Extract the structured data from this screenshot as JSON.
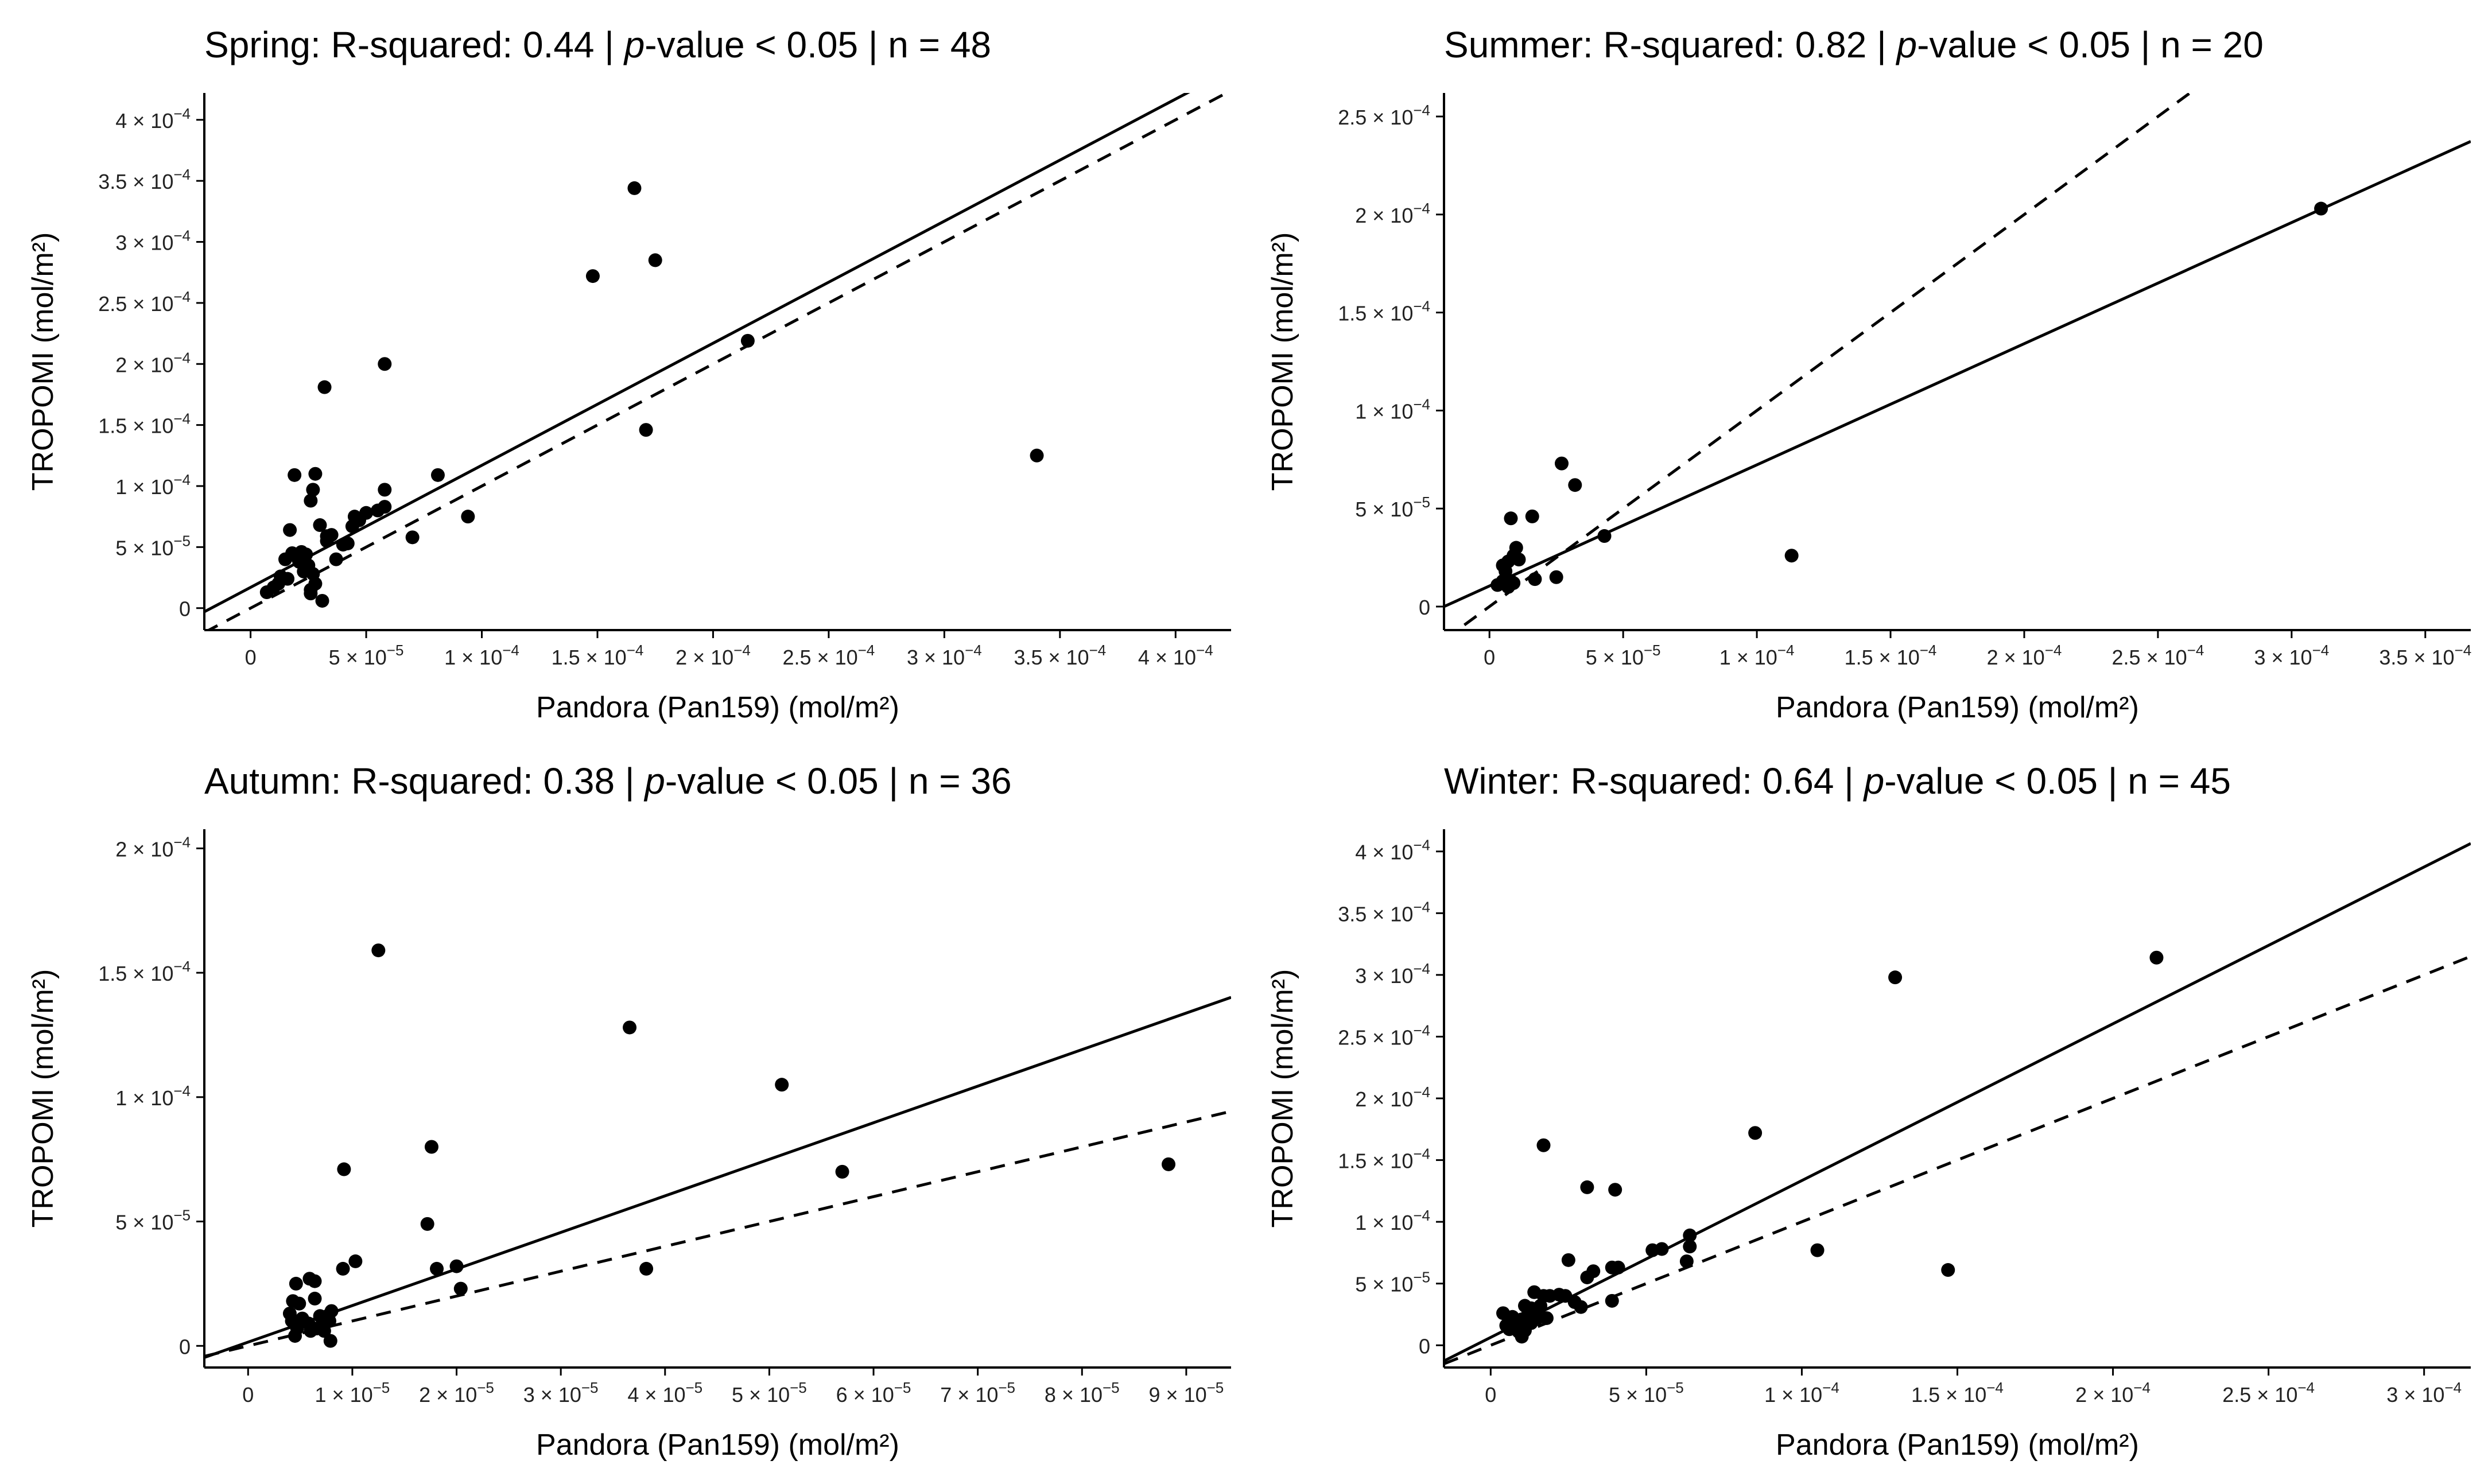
{
  "figure_axes": {
    "xlabel": "Pandora (Pan159) (mol/m²)",
    "ylabel": "TROPOMI (mol/m²)"
  },
  "chart_data": [
    {
      "type": "scatter",
      "panel": "spring",
      "season": "Spring",
      "title": "Spring: R-squared: 0.44 | p-value < 0.05 | n = 48",
      "title_parts": {
        "prefix": "Spring: R-squared: 0.44 | ",
        "italic": "p",
        "suffix": "-value < 0.05 | n = 48"
      },
      "r_squared": 0.44,
      "p_value": "< 0.05",
      "n": 48,
      "xlabel": "Pandora (Pan159) (mol/m²)",
      "ylabel": "TROPOMI (mol/m²)",
      "xlim": [
        -2e-05,
        0.000424
      ],
      "ylim": [
        -1.8e-05,
        0.000422
      ],
      "xticks": [
        {
          "value": 0,
          "mantissa": "0",
          "exp": ""
        },
        {
          "value": 5e-05,
          "mantissa": "5 × 10",
          "exp": "−5"
        },
        {
          "value": 0.0001,
          "mantissa": "1 × 10",
          "exp": "−4"
        },
        {
          "value": 0.00015,
          "mantissa": "1.5 × 10",
          "exp": "−4"
        },
        {
          "value": 0.0002,
          "mantissa": "2 × 10",
          "exp": "−4"
        },
        {
          "value": 0.00025,
          "mantissa": "2.5 × 10",
          "exp": "−4"
        },
        {
          "value": 0.0003,
          "mantissa": "3 × 10",
          "exp": "−4"
        },
        {
          "value": 0.00035,
          "mantissa": "3.5 × 10",
          "exp": "−4"
        },
        {
          "value": 0.0004,
          "mantissa": "4 × 10",
          "exp": "−4"
        }
      ],
      "yticks": [
        {
          "value": 0,
          "mantissa": "0",
          "exp": ""
        },
        {
          "value": 5e-05,
          "mantissa": "5 × 10",
          "exp": "−5"
        },
        {
          "value": 0.0001,
          "mantissa": "1 × 10",
          "exp": "−4"
        },
        {
          "value": 0.00015,
          "mantissa": "1.5 × 10",
          "exp": "−4"
        },
        {
          "value": 0.0002,
          "mantissa": "2 × 10",
          "exp": "−4"
        },
        {
          "value": 0.00025,
          "mantissa": "2.5 × 10",
          "exp": "−4"
        },
        {
          "value": 0.0003,
          "mantissa": "3 × 10",
          "exp": "−4"
        },
        {
          "value": 0.00035,
          "mantissa": "3.5 × 10",
          "exp": "−4"
        },
        {
          "value": 0.0004,
          "mantissa": "4 × 10",
          "exp": "−4"
        }
      ],
      "fit_line": {
        "slope": 1.0,
        "intercept": 1.7e-05
      },
      "one_to_one": {
        "slope": 1,
        "intercept": 0
      },
      "points": [
        [
          0.000166,
          0.000344
        ],
        [
          0.000175,
          0.000285
        ],
        [
          0.000148,
          0.000272
        ],
        [
          0.000215,
          0.000219
        ],
        [
          0.00034,
          0.000125
        ],
        [
          0.000171,
          0.000146
        ],
        [
          5.8e-05,
          0.0002
        ],
        [
          3.2e-05,
          0.000181
        ],
        [
          8.1e-05,
          0.000109
        ],
        [
          9.4e-05,
          7.5e-05
        ],
        [
          7e-05,
          5.8e-05
        ],
        [
          5.8e-05,
          9.7e-05
        ],
        [
          5.5e-05,
          8e-05
        ],
        [
          5.8e-05,
          8.3e-05
        ],
        [
          5e-05,
          7.8e-05
        ],
        [
          4.7e-05,
          7.2e-05
        ],
        [
          4.5e-05,
          7.5e-05
        ],
        [
          4.4e-05,
          6.7e-05
        ],
        [
          4.2e-05,
          5.3e-05
        ],
        [
          4e-05,
          5.2e-05
        ],
        [
          3.7e-05,
          4e-05
        ],
        [
          3.5e-05,
          6e-05
        ],
        [
          3.3e-05,
          5.5e-05
        ],
        [
          3e-05,
          6.8e-05
        ],
        [
          2.8e-05,
          0.00011
        ],
        [
          2.7e-05,
          9.7e-05
        ],
        [
          2.6e-05,
          8.8e-05
        ],
        [
          1.9e-05,
          0.000109
        ],
        [
          1.7e-05,
          6.4e-05
        ],
        [
          1.5e-05,
          4e-05
        ],
        [
          2e-05,
          4.2e-05
        ],
        [
          2.2e-05,
          4.6e-05
        ],
        [
          2.4e-05,
          4.4e-05
        ],
        [
          2.5e-05,
          3.5e-05
        ],
        [
          2.3e-05,
          3e-05
        ],
        [
          2.1e-05,
          3.8e-05
        ],
        [
          2.7e-05,
          2.8e-05
        ],
        [
          2.8e-05,
          2e-05
        ],
        [
          2.6e-05,
          1.5e-05
        ],
        [
          2.6e-05,
          1.2e-05
        ],
        [
          3.1e-05,
          6e-06
        ],
        [
          1.6e-05,
          2.4e-05
        ],
        [
          1.2e-05,
          2e-05
        ],
        [
          1e-05,
          1.7e-05
        ],
        [
          7e-06,
          1.3e-05
        ],
        [
          1.3e-05,
          2.6e-05
        ],
        [
          1.8e-05,
          4.5e-05
        ],
        [
          3.3e-05,
          5.9e-05
        ]
      ]
    },
    {
      "type": "scatter",
      "panel": "summer",
      "season": "Summer",
      "title": "Summer: R-squared: 0.82 | p-value < 0.05 | n = 20",
      "title_parts": {
        "prefix": "Summer: R-squared: 0.82 | ",
        "italic": "p",
        "suffix": "-value < 0.05 | n = 20"
      },
      "r_squared": 0.82,
      "p_value": "< 0.05",
      "n": 20,
      "xlabel": "Pandora (Pan159) (mol/m²)",
      "ylabel": "TROPOMI (mol/m²)",
      "xlim": [
        -1.7e-05,
        0.000367
      ],
      "ylim": [
        -1.2e-05,
        0.000262
      ],
      "xticks": [
        {
          "value": 0,
          "mantissa": "0",
          "exp": ""
        },
        {
          "value": 5e-05,
          "mantissa": "5 × 10",
          "exp": "−5"
        },
        {
          "value": 0.0001,
          "mantissa": "1 × 10",
          "exp": "−4"
        },
        {
          "value": 0.00015,
          "mantissa": "1.5 × 10",
          "exp": "−4"
        },
        {
          "value": 0.0002,
          "mantissa": "2 × 10",
          "exp": "−4"
        },
        {
          "value": 0.00025,
          "mantissa": "2.5 × 10",
          "exp": "−4"
        },
        {
          "value": 0.0003,
          "mantissa": "3 × 10",
          "exp": "−4"
        },
        {
          "value": 0.00035,
          "mantissa": "3.5 × 10",
          "exp": "−4"
        }
      ],
      "yticks": [
        {
          "value": 0,
          "mantissa": "0",
          "exp": ""
        },
        {
          "value": 5e-05,
          "mantissa": "5 × 10",
          "exp": "−5"
        },
        {
          "value": 0.0001,
          "mantissa": "1 × 10",
          "exp": "−4"
        },
        {
          "value": 0.00015,
          "mantissa": "1.5 × 10",
          "exp": "−4"
        },
        {
          "value": 0.0002,
          "mantissa": "2 × 10",
          "exp": "−4"
        },
        {
          "value": 0.00025,
          "mantissa": "2.5 × 10",
          "exp": "−4"
        }
      ],
      "fit_line": {
        "slope": 0.618,
        "intercept": 1.05e-05
      },
      "one_to_one": {
        "slope": 1,
        "intercept": 0
      },
      "points": [
        [
          0.000311,
          0.000203
        ],
        [
          0.000113,
          2.6e-05
        ],
        [
          2.7e-05,
          7.3e-05
        ],
        [
          3.2e-05,
          6.2e-05
        ],
        [
          4.3e-05,
          3.6e-05
        ],
        [
          1.6e-05,
          4.6e-05
        ],
        [
          1e-05,
          3e-05
        ],
        [
          8e-06,
          4.5e-05
        ],
        [
          7e-06,
          2.3e-05
        ],
        [
          5e-06,
          2.1e-05
        ],
        [
          9e-06,
          2.6e-05
        ],
        [
          1.1e-05,
          2.4e-05
        ],
        [
          6e-06,
          1.8e-05
        ],
        [
          5e-06,
          1.3e-05
        ],
        [
          3e-06,
          1.1e-05
        ],
        [
          7e-06,
          1e-05
        ],
        [
          8e-06,
          1.3e-05
        ],
        [
          9e-06,
          1.2e-05
        ],
        [
          1.7e-05,
          1.4e-05
        ],
        [
          2.5e-05,
          1.5e-05
        ]
      ]
    },
    {
      "type": "scatter",
      "panel": "autumn",
      "season": "Autumn",
      "title": "Autumn: R-squared: 0.38 | p-value < 0.05 | n = 36",
      "title_parts": {
        "prefix": "Autumn: R-squared: 0.38 | ",
        "italic": "p",
        "suffix": "-value < 0.05 | n = 36"
      },
      "r_squared": 0.38,
      "p_value": "< 0.05",
      "n": 36,
      "xlabel": "Pandora (Pan159) (mol/m²)",
      "ylabel": "TROPOMI (mol/m²)",
      "xlim": [
        -4.2e-06,
        9.43e-05
      ],
      "ylim": [
        -8.7e-06,
        0.0002077
      ],
      "xticks": [
        {
          "value": 0,
          "mantissa": "0",
          "exp": ""
        },
        {
          "value": 1e-05,
          "mantissa": "1 × 10",
          "exp": "−5"
        },
        {
          "value": 2e-05,
          "mantissa": "2 × 10",
          "exp": "−5"
        },
        {
          "value": 3e-05,
          "mantissa": "3 × 10",
          "exp": "−5"
        },
        {
          "value": 4e-05,
          "mantissa": "4 × 10",
          "exp": "−5"
        },
        {
          "value": 5e-05,
          "mantissa": "5 × 10",
          "exp": "−5"
        },
        {
          "value": 6e-05,
          "mantissa": "6 × 10",
          "exp": "−5"
        },
        {
          "value": 7e-05,
          "mantissa": "7 × 10",
          "exp": "−5"
        },
        {
          "value": 8e-05,
          "mantissa": "8 × 10",
          "exp": "−5"
        },
        {
          "value": 9e-05,
          "mantissa": "9 × 10",
          "exp": "−5"
        }
      ],
      "yticks": [
        {
          "value": 0,
          "mantissa": "0",
          "exp": ""
        },
        {
          "value": 5e-05,
          "mantissa": "5 × 10",
          "exp": "−5"
        },
        {
          "value": 0.0001,
          "mantissa": "1 × 10",
          "exp": "−4"
        },
        {
          "value": 0.00015,
          "mantissa": "1.5 × 10",
          "exp": "−4"
        },
        {
          "value": 0.0002,
          "mantissa": "2 × 10",
          "exp": "−4"
        }
      ],
      "fit_line": {
        "slope": 1.47,
        "intercept": 1.5e-06
      },
      "one_to_one": {
        "slope": 1,
        "intercept": 0
      },
      "points": [
        [
          1.25e-05,
          0.000159
        ],
        [
          3.66e-05,
          0.000128
        ],
        [
          5.12e-05,
          0.000105
        ],
        [
          8.83e-05,
          7.3e-05
        ],
        [
          5.7e-05,
          7e-05
        ],
        [
          9.2e-06,
          7.1e-05
        ],
        [
          1.76e-05,
          8e-05
        ],
        [
          1.72e-05,
          4.9e-05
        ],
        [
          3.82e-05,
          3.1e-05
        ],
        [
          2e-05,
          3.2e-05
        ],
        [
          1.81e-05,
          3.1e-05
        ],
        [
          1.03e-05,
          3.4e-05
        ],
        [
          9.1e-06,
          3.1e-05
        ],
        [
          2.04e-05,
          2.3e-05
        ],
        [
          5.9e-06,
          2.7e-05
        ],
        [
          6.4e-06,
          2.6e-05
        ],
        [
          4.6e-06,
          2.5e-05
        ],
        [
          4.3e-06,
          1.8e-05
        ],
        [
          4.9e-06,
          1.7e-05
        ],
        [
          5.2e-06,
          1e-05
        ],
        [
          6.4e-06,
          1.9e-05
        ],
        [
          7.6e-06,
          1.2e-05
        ],
        [
          7.8e-06,
          1e-05
        ],
        [
          7.1e-06,
          8e-06
        ],
        [
          6.9e-06,
          1.2e-05
        ],
        [
          6.6e-06,
          7e-06
        ],
        [
          6e-06,
          6e-06
        ],
        [
          5.8e-06,
          9e-06
        ],
        [
          5.2e-06,
          1.1e-05
        ],
        [
          4.7e-06,
          7e-06
        ],
        [
          4.5e-06,
          4e-06
        ],
        [
          4.2e-06,
          1e-05
        ],
        [
          4e-06,
          1.3e-05
        ],
        [
          7.3e-06,
          6e-06
        ],
        [
          7.9e-06,
          2e-06
        ],
        [
          8e-06,
          1.4e-05
        ]
      ]
    },
    {
      "type": "scatter",
      "panel": "winter",
      "season": "Winter",
      "title": "Winter: R-squared: 0.64 | p-value < 0.05 | n = 45",
      "title_parts": {
        "prefix": "Winter: R-squared: 0.64 | ",
        "italic": "p",
        "suffix": "-value < 0.05 | n = 45"
      },
      "r_squared": 0.64,
      "p_value": "< 0.05",
      "n": 45,
      "xlabel": "Pandora (Pan159) (mol/m²)",
      "ylabel": "TROPOMI (mol/m²)",
      "xlim": [
        -1.5e-05,
        0.000315
      ],
      "ylim": [
        -1.8e-05,
        0.000418
      ],
      "xticks": [
        {
          "value": 0,
          "mantissa": "0",
          "exp": ""
        },
        {
          "value": 5e-05,
          "mantissa": "5 × 10",
          "exp": "−5"
        },
        {
          "value": 0.0001,
          "mantissa": "1 × 10",
          "exp": "−4"
        },
        {
          "value": 0.00015,
          "mantissa": "1.5 × 10",
          "exp": "−4"
        },
        {
          "value": 0.0002,
          "mantissa": "2 × 10",
          "exp": "−4"
        },
        {
          "value": 0.00025,
          "mantissa": "2.5 × 10",
          "exp": "−4"
        },
        {
          "value": 0.0003,
          "mantissa": "3 × 10",
          "exp": "−4"
        }
      ],
      "yticks": [
        {
          "value": 0,
          "mantissa": "0",
          "exp": ""
        },
        {
          "value": 5e-05,
          "mantissa": "5 × 10",
          "exp": "−5"
        },
        {
          "value": 0.0001,
          "mantissa": "1 × 10",
          "exp": "−4"
        },
        {
          "value": 0.00015,
          "mantissa": "1.5 × 10",
          "exp": "−4"
        },
        {
          "value": 0.0002,
          "mantissa": "2 × 10",
          "exp": "−4"
        },
        {
          "value": 0.00025,
          "mantissa": "2.5 × 10",
          "exp": "−4"
        },
        {
          "value": 0.0003,
          "mantissa": "3 × 10",
          "exp": "−4"
        },
        {
          "value": 0.00035,
          "mantissa": "3.5 × 10",
          "exp": "−4"
        },
        {
          "value": 0.0004,
          "mantissa": "4 × 10",
          "exp": "−4"
        }
      ],
      "fit_line": {
        "slope": 1.27,
        "intercept": 6.4e-06
      },
      "one_to_one": {
        "slope": 1,
        "intercept": 0
      },
      "points": [
        [
          0.000214,
          0.000314
        ],
        [
          0.00013,
          0.000298
        ],
        [
          8.5e-05,
          0.000172
        ],
        [
          0.000147,
          6.1e-05
        ],
        [
          0.000105,
          7.7e-05
        ],
        [
          1.7e-05,
          0.000162
        ],
        [
          3.1e-05,
          0.000128
        ],
        [
          4e-05,
          0.000126
        ],
        [
          6.4e-05,
          8.9e-05
        ],
        [
          6.4e-05,
          8e-05
        ],
        [
          5.5e-05,
          7.8e-05
        ],
        [
          5.2e-05,
          7.7e-05
        ],
        [
          6.3e-05,
          6.8e-05
        ],
        [
          4.1e-05,
          6.3e-05
        ],
        [
          3.9e-05,
          6.3e-05
        ],
        [
          3.3e-05,
          6e-05
        ],
        [
          3.1e-05,
          5.5e-05
        ],
        [
          3.9e-05,
          3.6e-05
        ],
        [
          2.5e-05,
          6.9e-05
        ],
        [
          2.2e-05,
          4.1e-05
        ],
        [
          2.7e-05,
          3.5e-05
        ],
        [
          2.9e-05,
          3.1e-05
        ],
        [
          2.4e-05,
          4e-05
        ],
        [
          1.9e-05,
          4e-05
        ],
        [
          1.7e-05,
          4e-05
        ],
        [
          1.4e-05,
          4.3e-05
        ],
        [
          1.6e-05,
          3.2e-05
        ],
        [
          1.3e-05,
          3e-05
        ],
        [
          1.1e-05,
          3.2e-05
        ],
        [
          1.5e-05,
          2.2e-05
        ],
        [
          1.2e-05,
          2.5e-05
        ],
        [
          1e-05,
          2.1e-05
        ],
        [
          9e-06,
          1.9e-05
        ],
        [
          8e-06,
          1.8e-05
        ],
        [
          7e-06,
          2.3e-05
        ],
        [
          6e-06,
          1.8e-05
        ],
        [
          5e-06,
          1.6e-05
        ],
        [
          4e-06,
          2.6e-05
        ],
        [
          6e-06,
          1.3e-05
        ],
        [
          8e-06,
          1.4e-05
        ],
        [
          9e-06,
          1.1e-05
        ],
        [
          1e-05,
          7e-06
        ],
        [
          1.1e-05,
          1.2e-05
        ],
        [
          1.3e-05,
          1.8e-05
        ],
        [
          1.8e-05,
          2.2e-05
        ]
      ]
    }
  ]
}
